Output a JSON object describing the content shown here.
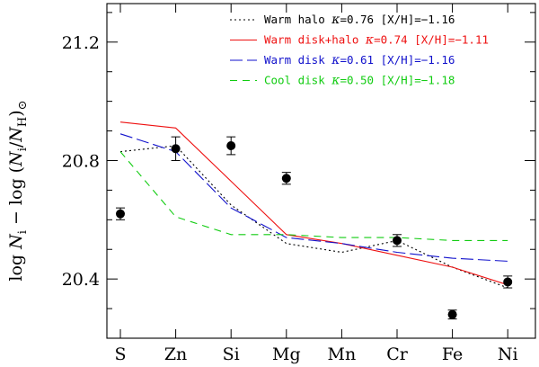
{
  "chart_data": {
    "type": "line",
    "title": "",
    "xlabel": "",
    "ylabel": "log N_i − log (N_i/N_H)_⊙",
    "ylabel_parts": {
      "prefix": "log ",
      "n1": "N",
      "s1": "i",
      "mid": " − log (",
      "n2": "N",
      "s2": "i",
      "slash": "/",
      "n3": "N",
      "s3": "H",
      "close": ")",
      "sun": "⊙"
    },
    "categories": [
      "S",
      "Zn",
      "Si",
      "Mg",
      "Mn",
      "Cr",
      "Fe",
      "Ni"
    ],
    "ylim": [
      20.2,
      21.33
    ],
    "yticks": [
      20.4,
      20.8,
      21.2
    ],
    "ytick_labels": [
      "20.4",
      "20.8",
      "21.2"
    ],
    "series": [
      {
        "name": "Warm halo",
        "legend": {
          "pre": "Warm halo ",
          "kappa": "κ",
          "post": "=0.76 [X/H]=−1.16"
        },
        "color": "#000000",
        "dash": "2,3",
        "values": [
          20.83,
          20.85,
          20.65,
          20.52,
          20.49,
          20.53,
          20.44,
          20.37
        ]
      },
      {
        "name": "Warm disk+halo",
        "legend": {
          "pre": "Warm disk+halo ",
          "kappa": "κ",
          "post": "=0.74 [X/H]=−1.11"
        },
        "color": "#ee1111",
        "dash": "",
        "values": [
          20.93,
          20.91,
          20.73,
          20.55,
          20.52,
          20.48,
          20.44,
          20.38
        ]
      },
      {
        "name": "Warm disk",
        "legend": {
          "pre": "Warm disk ",
          "kappa": "κ",
          "post": "=0.61 [X/H]=−1.16"
        },
        "color": "#1111cc",
        "dash": "14,5",
        "values": [
          20.89,
          20.83,
          20.64,
          20.54,
          20.52,
          20.49,
          20.47,
          20.46
        ]
      },
      {
        "name": "Cool disk",
        "legend": {
          "pre": "Cool disk ",
          "kappa": "κ",
          "post": "=0.50 [X/H]=−1.18"
        },
        "color": "#11cc11",
        "dash": "8,6",
        "values": [
          20.83,
          20.61,
          20.55,
          20.55,
          20.54,
          20.54,
          20.53,
          20.53
        ]
      }
    ],
    "observed": {
      "name": "Observed",
      "values": [
        20.62,
        20.84,
        20.85,
        20.74,
        null,
        20.53,
        20.28,
        20.39
      ],
      "errors": [
        0.02,
        0.04,
        0.03,
        0.02,
        null,
        0.02,
        0.015,
        0.02
      ]
    },
    "legend_position": "top-right"
  }
}
